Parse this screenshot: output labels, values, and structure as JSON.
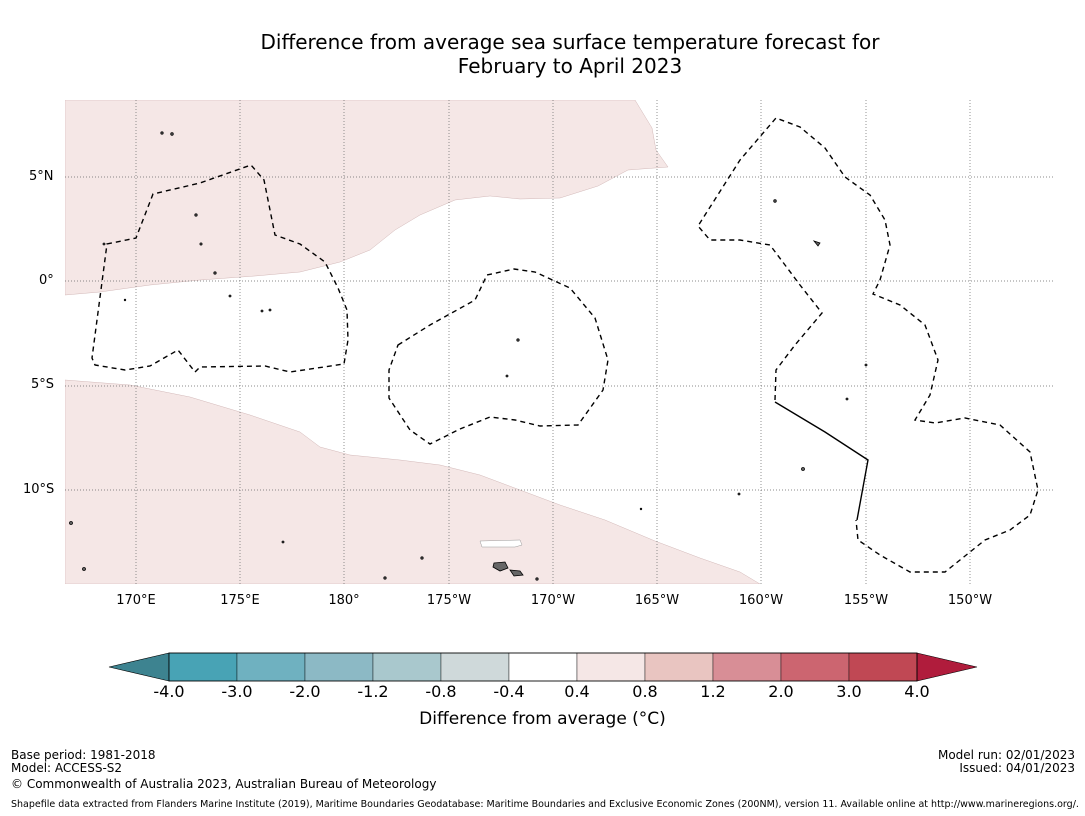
{
  "title": {
    "line1": "Difference from average sea surface temperature forecast for",
    "line2": "February to April 2023"
  },
  "map": {
    "lat_labels": [
      "5°N",
      "0°",
      "5°S",
      "10°S"
    ],
    "lon_labels": [
      "170°E",
      "175°E",
      "180°",
      "175°W",
      "170°W",
      "165°W",
      "160°W",
      "155°W",
      "150°W"
    ]
  },
  "colorbar": {
    "ticks": [
      "-4.0",
      "-3.0",
      "-2.0",
      "-1.2",
      "-0.8",
      "-0.4",
      "0.4",
      "0.8",
      "1.2",
      "2.0",
      "3.0",
      "4.0"
    ],
    "colors": [
      "#3d8390",
      "#48a3b5",
      "#6fb1c0",
      "#8cb9c5",
      "#a9c8cd",
      "#cfd9da",
      "#ffffff",
      "#f5e7e6",
      "#e9c5c1",
      "#d88e96",
      "#cc6570",
      "#c04854",
      "#b01c3c"
    ],
    "label": "Difference from average (°C)"
  },
  "footer": {
    "base_period": "Base period: 1981-2018",
    "model": "Model: ACCESS-S2",
    "copyright": "© Commonwealth of Australia 2023, Australian Bureau of Meteorology",
    "model_run": "Model run: 02/01/2023",
    "issued": "Issued: 04/01/2023",
    "shapefile": "Shapefile data extracted from Flanders Marine Institute (2019), Maritime Boundaries Geodatabase: Maritime Boundaries and Exclusive Economic Zones (200NM), version 11. Available online at http://www.marineregions.org/."
  }
}
